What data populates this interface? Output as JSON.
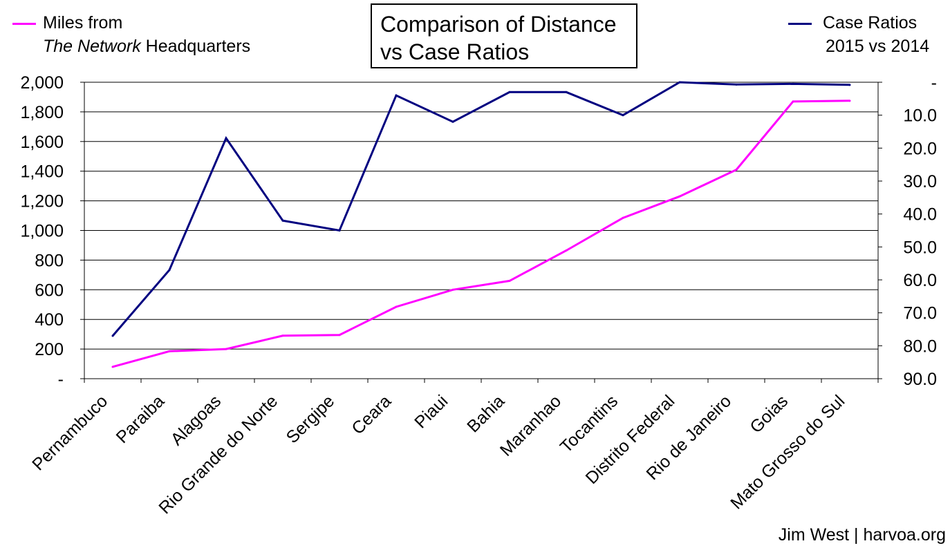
{
  "chart_data": {
    "type": "line",
    "title": [
      "Comparison of Distance",
      "vs Case Ratios"
    ],
    "categories": [
      "Pernambuco",
      "Paraiba",
      "Alagoas",
      "Rio Grande do Norte",
      "Sergipe",
      "Ceara",
      "Piaui",
      "Bahia",
      "Maranhao",
      "Tocantins",
      "Distrito Federal",
      "Rio de Janeiro",
      "Goias",
      "Mato Grosso do Sul"
    ],
    "series": [
      {
        "axis": "left",
        "color": "#ff00ff",
        "legend": [
          "Miles from",
          "The Network Headquarters"
        ],
        "values": [
          80,
          185,
          200,
          290,
          295,
          485,
          600,
          660,
          865,
          1085,
          1230,
          1410,
          1870,
          1875
        ]
      },
      {
        "axis": "right",
        "color": "#000080",
        "legend": [
          "Case Ratios",
          "2015 vs 2014"
        ],
        "values": [
          77,
          57,
          17,
          42,
          45,
          4,
          12,
          3,
          3,
          10,
          0,
          0.7,
          0.5,
          0.8
        ]
      }
    ],
    "left_axis": {
      "min": 0,
      "max": 2000,
      "step": 200,
      "tick_labels": [
        "-",
        "200",
        "400",
        "600",
        "800",
        "1,000",
        "1,200",
        "1,400",
        "1,600",
        "1,800",
        "2,000"
      ]
    },
    "right_axis": {
      "min": 0,
      "max": 90,
      "step": 10,
      "inverted": true,
      "tick_labels": [
        "-",
        "10.0",
        "20.0",
        "30.0",
        "40.0",
        "50.0",
        "60.0",
        "70.0",
        "80.0",
        "90.0"
      ]
    },
    "grid": true
  },
  "legend_left": {
    "line1": "Miles from",
    "italic": "The Network",
    "rest": " Headquarters"
  },
  "legend_right": {
    "line1": "Case Ratios",
    "line2": "2015 vs 2014"
  },
  "credit": "Jim West | harvoa.org"
}
